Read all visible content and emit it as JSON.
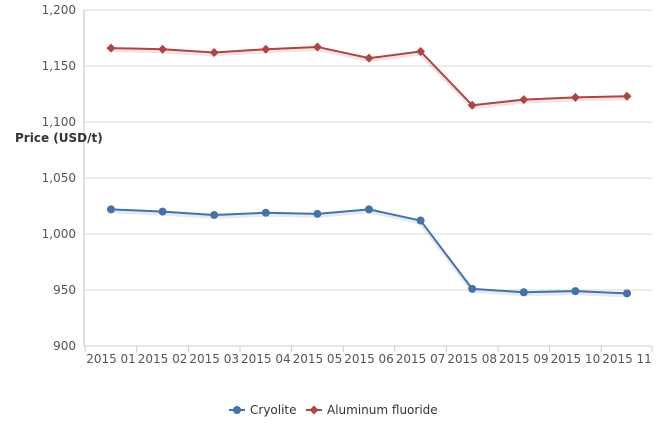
{
  "chart_data": {
    "type": "line",
    "title": "",
    "xlabel": "",
    "ylabel": "Price (USD/t)",
    "categories": [
      "2015 01",
      "2015 02",
      "2015 03",
      "2015 04",
      "2015 05",
      "2015 06",
      "2015 07",
      "2015 08",
      "2015 09",
      "2015 10",
      "2015 11"
    ],
    "x_tick_labels": [
      "2015 01",
      "2015 02",
      "2015 03",
      "2015 04",
      "2015 05",
      "2015 06",
      "2015 07",
      "2015 08",
      "2015 09",
      "2015 10",
      "2015 11"
    ],
    "ylim": [
      900,
      1200
    ],
    "y_ticks": [
      900,
      950,
      1000,
      1050,
      1100,
      1150,
      1200
    ],
    "y_tick_labels": [
      "900",
      "950",
      "1,000",
      "1,050",
      "1,100",
      "1,150",
      "1,200"
    ],
    "grid": true,
    "legend_position": "bottom",
    "series": [
      {
        "name": "Cryolite",
        "color": "#4572a7",
        "marker": "circle",
        "values": [
          1022,
          1020,
          1017,
          1019,
          1018,
          1022,
          1012,
          951,
          948,
          949,
          947
        ]
      },
      {
        "name": "Aluminum fluoride",
        "color": "#aa4643",
        "marker": "diamond",
        "values": [
          1166,
          1165,
          1162,
          1165,
          1167,
          1157,
          1163,
          1115,
          1120,
          1122,
          1123
        ]
      }
    ]
  }
}
